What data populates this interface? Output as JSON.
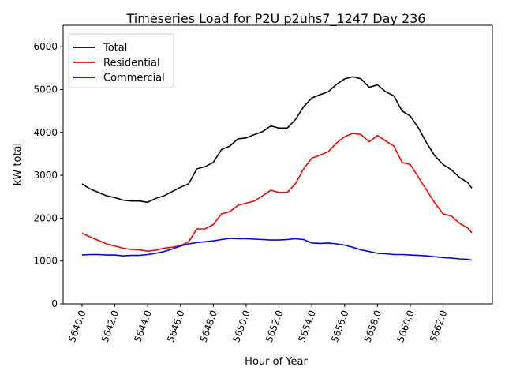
{
  "chart_data": {
    "type": "line",
    "title": "Timeseries Load for P2U p2uhs7_1247  Day 236",
    "xlabel": "Hour of Year",
    "ylabel": "kW total",
    "xlim": [
      5638.85,
      5665
    ],
    "ylim": [
      0,
      6500
    ],
    "grid": false,
    "legend_position": "top-left",
    "xticks": [
      5640,
      5642,
      5644,
      5646,
      5648,
      5650,
      5652,
      5654,
      5656,
      5658,
      5660,
      5662
    ],
    "xtick_labels": [
      "5640.0",
      "5642.0",
      "5644.0",
      "5646.0",
      "5648.0",
      "5650.0",
      "5652.0",
      "5654.0",
      "5656.0",
      "5658.0",
      "5660.0",
      "5662.0"
    ],
    "yticks": [
      0,
      1000,
      2000,
      3000,
      4000,
      5000,
      6000
    ],
    "ytick_labels": [
      "0",
      "1000",
      "2000",
      "3000",
      "4000",
      "5000",
      "6000"
    ],
    "x": [
      5640,
      5640.5,
      5641,
      5641.5,
      5642,
      5642.5,
      5643,
      5643.5,
      5644,
      5644.5,
      5645,
      5645.5,
      5646,
      5646.5,
      5647,
      5647.5,
      5648,
      5648.5,
      5649,
      5649.5,
      5650,
      5650.5,
      5651,
      5651.5,
      5652,
      5652.5,
      5653,
      5653.5,
      5654,
      5654.5,
      5655,
      5655.5,
      5656,
      5656.5,
      5657,
      5657.5,
      5658,
      5658.5,
      5659,
      5659.5,
      5660,
      5660.5,
      5661,
      5661.5,
      5662,
      5662.5,
      5663,
      5663.5,
      5663.75
    ],
    "series": [
      {
        "name": "Total",
        "color": "#000000",
        "values": [
          2800,
          2680,
          2600,
          2520,
          2480,
          2420,
          2400,
          2400,
          2370,
          2460,
          2520,
          2620,
          2720,
          2800,
          3150,
          3200,
          3300,
          3600,
          3680,
          3850,
          3870,
          3950,
          4020,
          4150,
          4100,
          4100,
          4300,
          4600,
          4800,
          4880,
          4950,
          5120,
          5250,
          5300,
          5250,
          5050,
          5110,
          4950,
          4850,
          4500,
          4380,
          4100,
          3750,
          3450,
          3250,
          3130,
          2950,
          2830,
          2700
        ]
      },
      {
        "name": "Residential",
        "color": "#ff0000",
        "values": [
          1650,
          1560,
          1480,
          1400,
          1350,
          1300,
          1270,
          1260,
          1230,
          1250,
          1300,
          1320,
          1360,
          1450,
          1750,
          1750,
          1850,
          2100,
          2150,
          2300,
          2350,
          2400,
          2520,
          2650,
          2600,
          2600,
          2800,
          3150,
          3400,
          3470,
          3550,
          3750,
          3900,
          3980,
          3950,
          3780,
          3930,
          3800,
          3680,
          3300,
          3250,
          2950,
          2650,
          2350,
          2100,
          2050,
          1880,
          1770,
          1660
        ]
      },
      {
        "name": "Commercial",
        "color": "#0000ff",
        "values": [
          1140,
          1150,
          1150,
          1140,
          1140,
          1120,
          1130,
          1130,
          1150,
          1180,
          1220,
          1280,
          1350,
          1400,
          1430,
          1450,
          1470,
          1500,
          1530,
          1520,
          1520,
          1510,
          1500,
          1490,
          1490,
          1500,
          1520,
          1500,
          1420,
          1410,
          1420,
          1400,
          1370,
          1320,
          1260,
          1220,
          1180,
          1170,
          1150,
          1150,
          1140,
          1130,
          1120,
          1100,
          1080,
          1070,
          1050,
          1040,
          1020
        ]
      }
    ]
  }
}
